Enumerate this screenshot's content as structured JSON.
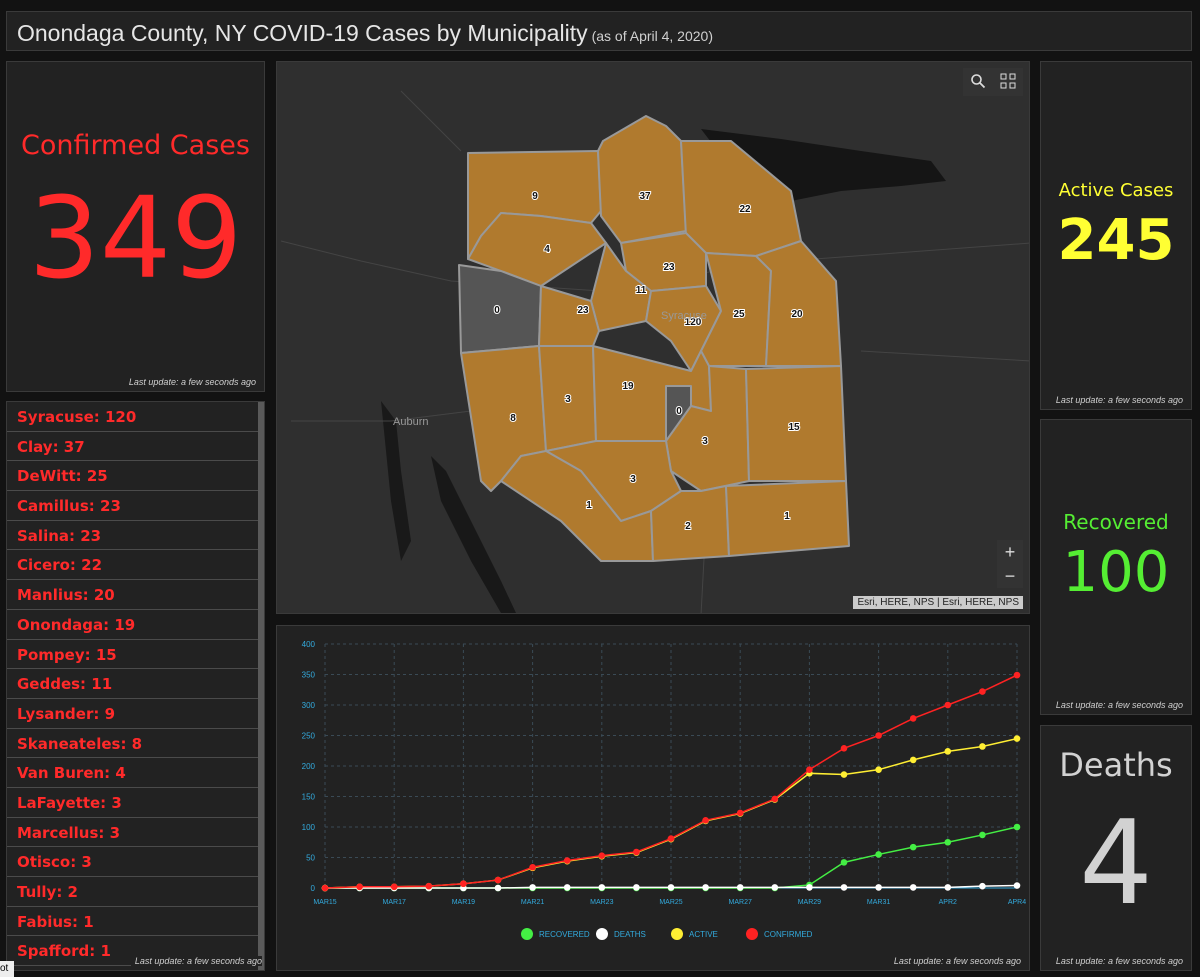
{
  "header": {
    "title": "Onondaga County, NY COVID-19 Cases by Municipality",
    "subtitle": "(as of April 4, 2020)"
  },
  "confirmed": {
    "label": "Confirmed Cases",
    "value": "349",
    "updated": "Last update: a few seconds ago",
    "color": "#ff2a2a"
  },
  "active": {
    "label": "Active Cases",
    "value": "245",
    "updated": "Last update: a few seconds ago",
    "color": "#ffff33"
  },
  "recovered": {
    "label": "Recovered",
    "value": "100",
    "updated": "Last update: a few seconds ago",
    "color": "#55ee33"
  },
  "deaths": {
    "label": "Deaths",
    "value": "4",
    "updated": "Last update: a few seconds ago",
    "color": "#d2d2d2"
  },
  "municipalities": [
    "Syracuse: 120",
    "Clay: 37",
    "DeWitt: 25",
    "Camillus: 23",
    "Salina: 23",
    "Cicero: 22",
    "Manlius: 20",
    "Onondaga: 19",
    "Pompey: 15",
    "Geddes: 11",
    "Lysander: 9",
    "Skaneateles: 8",
    "Van Buren: 4",
    "LaFayette: 3",
    "Marcellus: 3",
    "Otisco: 3",
    "Tully: 2",
    "Fabius: 1",
    "Spafford: 1"
  ],
  "list_updated": "Last update: a few seconds ago",
  "map": {
    "labels": {
      "syracuse": "Syracuse",
      "auburn": "Auburn"
    },
    "counts": {
      "lysander": "9",
      "clay": "37",
      "cicero": "22",
      "van_buren": "4",
      "salina": "23",
      "geddes": "11",
      "elbridge": "0",
      "camillus": "23",
      "syracuse": "120",
      "dewitt": "25",
      "manlius": "20",
      "skaneateles": "8",
      "marcellus": "3",
      "onondaga": "19",
      "nation": "0",
      "lafayette": "3",
      "pompey": "15",
      "otisco": "3",
      "spafford": "1",
      "tully": "2",
      "fabius": "1"
    },
    "attribution": "Esri, HERE, NPS | Esri, HERE, NPS",
    "zoom_in": "+",
    "zoom_out": "−",
    "fill_color": "#b07a2e",
    "icons": [
      "search-icon",
      "qr-code-icon"
    ]
  },
  "chart_data": {
    "type": "line",
    "x": [
      "MAR15",
      "MAR16",
      "MAR17",
      "MAR18",
      "MAR19",
      "MAR20",
      "MAR21",
      "MAR22",
      "MAR23",
      "MAR24",
      "MAR25",
      "MAR26",
      "MAR27",
      "MAR28",
      "MAR29",
      "MAR30",
      "MAR31",
      "APR1",
      "APR2",
      "APR3",
      "APR4"
    ],
    "x_tick_labels": [
      "MAR15",
      "MAR17",
      "MAR19",
      "MAR21",
      "MAR23",
      "MAR25",
      "MAR27",
      "MAR29",
      "MAR31",
      "APR2",
      "APR4"
    ],
    "ylim": [
      0,
      400
    ],
    "yticks": [
      0,
      50,
      100,
      150,
      200,
      250,
      300,
      350,
      400
    ],
    "grid": true,
    "legend_position": "bottom",
    "series": [
      {
        "name": "RECOVERED",
        "color": "#44ee44",
        "values": [
          0,
          0,
          0,
          0,
          0,
          0,
          0,
          0,
          0,
          0,
          0,
          0,
          0,
          0,
          5,
          42,
          55,
          67,
          75,
          87,
          100
        ]
      },
      {
        "name": "DEATHS",
        "color": "#ffffff",
        "values": [
          0,
          0,
          0,
          0,
          0,
          0,
          1,
          1,
          1,
          1,
          1,
          1,
          1,
          1,
          1,
          1,
          1,
          1,
          1,
          3,
          4
        ]
      },
      {
        "name": "ACTIVE",
        "color": "#ffee33",
        "values": [
          0,
          2,
          2,
          3,
          7,
          13,
          33,
          44,
          52,
          58,
          80,
          110,
          122,
          145,
          188,
          186,
          194,
          210,
          224,
          232,
          245
        ]
      },
      {
        "name": "CONFIRMED",
        "color": "#ff2222",
        "values": [
          0,
          2,
          2,
          3,
          7,
          13,
          34,
          45,
          53,
          59,
          81,
          111,
          123,
          146,
          194,
          229,
          250,
          278,
          300,
          322,
          349
        ]
      }
    ],
    "updated": "Last update: a few seconds ago"
  },
  "corner_fragment": "ot"
}
